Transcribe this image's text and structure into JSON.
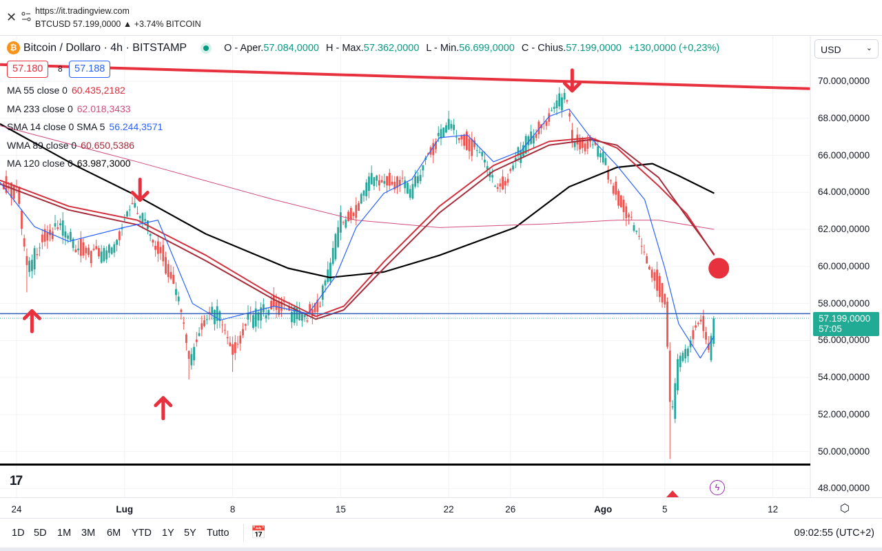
{
  "browser": {
    "url": "https://it.tradingview.com",
    "ticker_line": "BTCUSD 57.199,0000 ▲ +3.74% BITCOIN"
  },
  "legend": {
    "title": "Bitcoin / Dollaro · 4h · BITSTAMP",
    "open_label": "O - Aper.",
    "open": "57.084,0000",
    "high_label": "H - Max.",
    "high": "57.362,0000",
    "low_label": "L - Min.",
    "low": "56.699,0000",
    "close_label": "C - Chius.",
    "close": "57.199,0000",
    "change": "+130,0000 (+0,23%)",
    "bid": "57.180",
    "spread": "8",
    "ask": "57.188"
  },
  "indicators": [
    {
      "label": "MA 55 close 0",
      "value": "60.435,2182",
      "color": "#d32f3c"
    },
    {
      "label": "MA 233 close 0",
      "value": "62.018,3433",
      "color": "#d04a7a"
    },
    {
      "label": "SMA 14 close 0 SMA 5",
      "value": "56.244,3571",
      "color": "#2962ff"
    },
    {
      "label": "WMA 89 close 0",
      "value": "60.650,5386",
      "color": "#a52a3a"
    },
    {
      "label": "MA 120 close 0",
      "value": "63.987,3000",
      "color": "#000000"
    }
  ],
  "currency_select": "USD",
  "price_axis": [
    "70.000,0000",
    "68.000,0000",
    "66.000,0000",
    "64.000,0000",
    "62.000,0000",
    "60.000,0000",
    "58.000,0000",
    "56.000,0000",
    "54.000,0000",
    "52.000,0000",
    "50.000,0000",
    "48.000,0000"
  ],
  "current_price": {
    "value": "57.199,0000",
    "countdown": "57:05"
  },
  "time_axis": [
    {
      "label": "24",
      "day": 0,
      "bold": false
    },
    {
      "label": "Lug",
      "day": 7,
      "bold": true
    },
    {
      "label": "8",
      "day": 14,
      "bold": false
    },
    {
      "label": "15",
      "day": 21,
      "bold": false
    },
    {
      "label": "22",
      "day": 28,
      "bold": false
    },
    {
      "label": "26",
      "day": 32,
      "bold": false
    },
    {
      "label": "Ago",
      "day": 38,
      "bold": true
    },
    {
      "label": "5",
      "day": 42,
      "bold": false
    },
    {
      "label": "12",
      "day": 49,
      "bold": false
    }
  ],
  "ranges": [
    "1D",
    "5D",
    "1M",
    "3M",
    "6M",
    "YTD",
    "1Y",
    "5Y",
    "Tutto"
  ],
  "clock": "09:02:55 (UTC+2)",
  "colors": {
    "up": "#26a69a",
    "down": "#ef5350",
    "annotation": "#e8313f"
  },
  "chart_data": {
    "type": "candlestick",
    "title": "Bitcoin / Dollaro · 4h · BITSTAMP",
    "x_unit": "days since Jun 24",
    "ylim": [
      47600,
      72400
    ],
    "xlim": [
      -1.07,
      51.4
    ],
    "price_path": [
      [
        -1,
        64500
      ],
      [
        0,
        64000
      ],
      [
        0.7,
        59500
      ],
      [
        1.5,
        61500
      ],
      [
        3,
        62000
      ],
      [
        4,
        61000
      ],
      [
        5.5,
        60400
      ],
      [
        6.5,
        61500
      ],
      [
        7.3,
        63300
      ],
      [
        8.2,
        62500
      ],
      [
        9.5,
        60500
      ],
      [
        10.5,
        58000
      ],
      [
        11.2,
        55000
      ],
      [
        12,
        57000
      ],
      [
        13,
        57500
      ],
      [
        14,
        55500
      ],
      [
        15,
        57000
      ],
      [
        16.5,
        58000
      ],
      [
        17.5,
        57500
      ],
      [
        18.5,
        57300
      ],
      [
        19.5,
        57800
      ],
      [
        20,
        59000
      ],
      [
        21,
        62500
      ],
      [
        22,
        63000
      ],
      [
        23,
        64800
      ],
      [
        24.5,
        64500
      ],
      [
        25.5,
        64000
      ],
      [
        26.2,
        65500
      ],
      [
        27,
        66500
      ],
      [
        28,
        67700
      ],
      [
        29,
        66800
      ],
      [
        30,
        66000
      ],
      [
        31,
        64500
      ],
      [
        31.5,
        64300
      ],
      [
        32.5,
        66000
      ],
      [
        33.5,
        67200
      ],
      [
        34.5,
        68000
      ],
      [
        35.5,
        69300
      ],
      [
        36,
        66800
      ],
      [
        37,
        66500
      ],
      [
        38,
        65800
      ],
      [
        39,
        63500
      ],
      [
        40,
        62000
      ],
      [
        41,
        60000
      ],
      [
        42,
        58000
      ],
      [
        42.4,
        51500
      ],
      [
        42.8,
        54500
      ],
      [
        43.5,
        56000
      ],
      [
        44.3,
        57200
      ],
      [
        44.8,
        55000
      ],
      [
        45.2,
        57199
      ]
    ],
    "wick_lows": [
      [
        0.7,
        58600
      ],
      [
        11.2,
        53900
      ],
      [
        14,
        54300
      ],
      [
        42.4,
        49600
      ]
    ],
    "series": [
      {
        "name": "MA 120",
        "color": "#000000",
        "width": 2.2,
        "points": [
          [
            -1.07,
            67700
          ],
          [
            3.82,
            65450
          ],
          [
            7.82,
            63800
          ],
          [
            12.27,
            61750
          ],
          [
            17.6,
            59900
          ],
          [
            20.3,
            59400
          ],
          [
            23.8,
            59700
          ],
          [
            27.4,
            60600
          ],
          [
            32.3,
            62100
          ],
          [
            35.8,
            64300
          ],
          [
            38.9,
            65350
          ],
          [
            41.2,
            65550
          ],
          [
            42.9,
            64900
          ],
          [
            45.2,
            63950
          ]
        ]
      },
      {
        "name": "MA 233",
        "color": "#d04a7a",
        "width": 1,
        "points": [
          [
            -1.07,
            67600
          ],
          [
            7.82,
            65650
          ],
          [
            16.7,
            63600
          ],
          [
            22.0,
            62500
          ],
          [
            27.4,
            62100
          ],
          [
            34.5,
            62300
          ],
          [
            38.9,
            62500
          ],
          [
            41.6,
            62500
          ],
          [
            45.2,
            62000
          ]
        ]
      },
      {
        "name": "MA 55",
        "color": "#d32f3c",
        "width": 2,
        "points": [
          [
            -1.07,
            64650
          ],
          [
            3.38,
            63250
          ],
          [
            7.82,
            62500
          ],
          [
            12.27,
            60600
          ],
          [
            16.7,
            58400
          ],
          [
            19.4,
            57300
          ],
          [
            21.2,
            57850
          ],
          [
            23.8,
            60250
          ],
          [
            27.4,
            63250
          ],
          [
            30.9,
            65450
          ],
          [
            34.5,
            66750
          ],
          [
            37.2,
            66950
          ],
          [
            38.9,
            66400
          ],
          [
            41.6,
            64350
          ],
          [
            43.4,
            62850
          ],
          [
            45.2,
            60600
          ]
        ]
      },
      {
        "name": "WMA 89",
        "color": "#a52a3a",
        "width": 2,
        "points": [
          [
            -1.07,
            64450
          ],
          [
            3.38,
            63050
          ],
          [
            7.82,
            62250
          ],
          [
            12.27,
            60300
          ],
          [
            16.7,
            58200
          ],
          [
            19.4,
            57150
          ],
          [
            21.2,
            57650
          ],
          [
            23.8,
            59900
          ],
          [
            27.4,
            62900
          ],
          [
            30.9,
            65150
          ],
          [
            34.5,
            66550
          ],
          [
            37.2,
            66850
          ],
          [
            38.9,
            66550
          ],
          [
            41.6,
            64800
          ],
          [
            43.4,
            62700
          ],
          [
            45.2,
            60650
          ]
        ]
      },
      {
        "name": "SMA 14 / SMA 5",
        "color": "#2962ff",
        "width": 1.2,
        "points": [
          [
            -1.07,
            64550
          ],
          [
            1.16,
            62150
          ],
          [
            3.38,
            61350
          ],
          [
            6.93,
            62100
          ],
          [
            9.16,
            62500
          ],
          [
            11.4,
            58000
          ],
          [
            13.2,
            57100
          ],
          [
            16.7,
            57850
          ],
          [
            18.9,
            57450
          ],
          [
            20.7,
            59500
          ],
          [
            22.0,
            62100
          ],
          [
            23.8,
            63950
          ],
          [
            25.6,
            64700
          ],
          [
            27.4,
            66950
          ],
          [
            29.2,
            67100
          ],
          [
            30.9,
            65650
          ],
          [
            32.7,
            66250
          ],
          [
            34.5,
            68100
          ],
          [
            35.8,
            68500
          ],
          [
            37.2,
            66950
          ],
          [
            38.9,
            65450
          ],
          [
            40.7,
            63600
          ],
          [
            42.0,
            59900
          ],
          [
            42.9,
            56900
          ],
          [
            44.3,
            55050
          ],
          [
            45.2,
            56244
          ]
        ]
      }
    ],
    "annotations": {
      "trendline": [
        [
          -1.07,
          70900
        ],
        [
          51.4,
          69600
        ]
      ],
      "horizontal_levels": [
        57450,
        49300
      ],
      "down_arrows": [
        [
          8,
          64700
        ],
        [
          36,
          70600
        ]
      ],
      "up_arrows": [
        [
          1,
          57600
        ],
        [
          9.5,
          52900
        ]
      ],
      "target_dot": [
        45.5,
        59900
      ]
    }
  }
}
